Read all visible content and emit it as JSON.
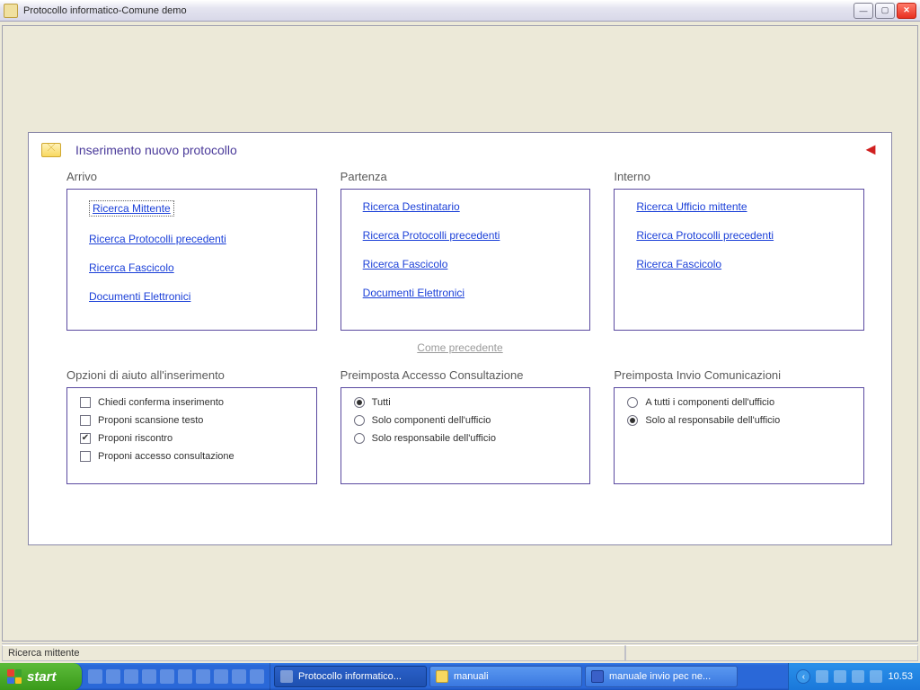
{
  "window": {
    "title": "Protocollo informatico-Comune demo"
  },
  "page": {
    "title": "Inserimento nuovo protocollo",
    "come_precedente": "Come precedente"
  },
  "columns": {
    "arrivo": {
      "title": "Arrivo",
      "links": {
        "ricerca_mittente": "Ricerca Mittente",
        "ricerca_protocolli": "Ricerca Protocolli precedenti",
        "ricerca_fascicolo": "Ricerca Fascicolo",
        "documenti_elettronici": "Documenti Elettronici"
      }
    },
    "partenza": {
      "title": "Partenza",
      "links": {
        "ricerca_destinatario": "Ricerca Destinatario",
        "ricerca_protocolli": "Ricerca Protocolli precedenti",
        "ricerca_fascicolo": "Ricerca Fascicolo",
        "documenti_elettronici": "Documenti Elettronici"
      }
    },
    "interno": {
      "title": "Interno",
      "links": {
        "ricerca_ufficio": "Ricerca Ufficio mittente",
        "ricerca_protocolli": "Ricerca Protocolli precedenti",
        "ricerca_fascicolo": "Ricerca Fascicolo"
      }
    }
  },
  "lower": {
    "opzioni": {
      "title": "Opzioni di aiuto all'inserimento",
      "chiedi_conferma": "Chiedi conferma inserimento",
      "proponi_scansione": "Proponi scansione testo",
      "proponi_riscontro": "Proponi riscontro",
      "proponi_accesso": "Proponi accesso consultazione"
    },
    "accesso": {
      "title": "Preimposta Accesso Consultazione",
      "tutti": "Tutti",
      "solo_componenti": "Solo componenti dell'ufficio",
      "solo_responsabile": "Solo responsabile dell'ufficio"
    },
    "invio": {
      "title": "Preimposta Invio Comunicazioni",
      "a_tutti": "A tutti i componenti dell'ufficio",
      "solo_responsabile": "Solo al responsabile dell'ufficio"
    }
  },
  "statusbar": {
    "text": "Ricerca mittente"
  },
  "taskbar": {
    "start": "start",
    "app1": "Protocollo informatico...",
    "folder": "manuali",
    "word": "manuale invio pec ne...",
    "clock": "10.53"
  }
}
